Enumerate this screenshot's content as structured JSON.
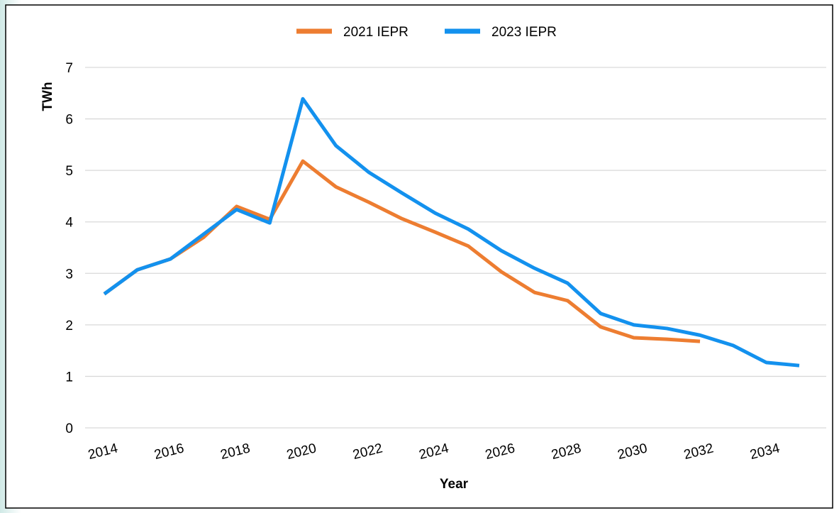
{
  "chart_data": {
    "type": "line",
    "x": [
      2014,
      2015,
      2016,
      2017,
      2018,
      2019,
      2020,
      2021,
      2022,
      2023,
      2024,
      2025,
      2026,
      2027,
      2028,
      2029,
      2030,
      2031,
      2032,
      2033,
      2034,
      2035
    ],
    "series": [
      {
        "name": "2021 IEPR",
        "color": "#ed7d31",
        "values": [
          2.6,
          3.07,
          3.28,
          3.7,
          4.3,
          4.05,
          5.18,
          4.68,
          4.38,
          4.06,
          3.8,
          3.53,
          3.03,
          2.63,
          2.47,
          1.96,
          1.75,
          1.72,
          1.68,
          null,
          null,
          null
        ]
      },
      {
        "name": "2023 IEPR",
        "color": "#1391ee",
        "values": [
          2.6,
          3.07,
          3.28,
          3.76,
          4.24,
          3.98,
          6.39,
          5.48,
          4.96,
          4.56,
          4.17,
          3.86,
          3.44,
          3.1,
          2.81,
          2.22,
          2.0,
          1.93,
          1.8,
          1.6,
          1.27,
          1.21
        ]
      }
    ],
    "x_label": "Year",
    "y_label": "TWh",
    "xlim": [
      2014,
      2035
    ],
    "xticks": [
      2014,
      2016,
      2018,
      2020,
      2022,
      2024,
      2026,
      2028,
      2030,
      2032,
      2034
    ],
    "ylim": [
      0,
      7
    ],
    "yticks": [
      0,
      1,
      2,
      3,
      4,
      5,
      6,
      7
    ],
    "grid": true,
    "legend": "top"
  }
}
